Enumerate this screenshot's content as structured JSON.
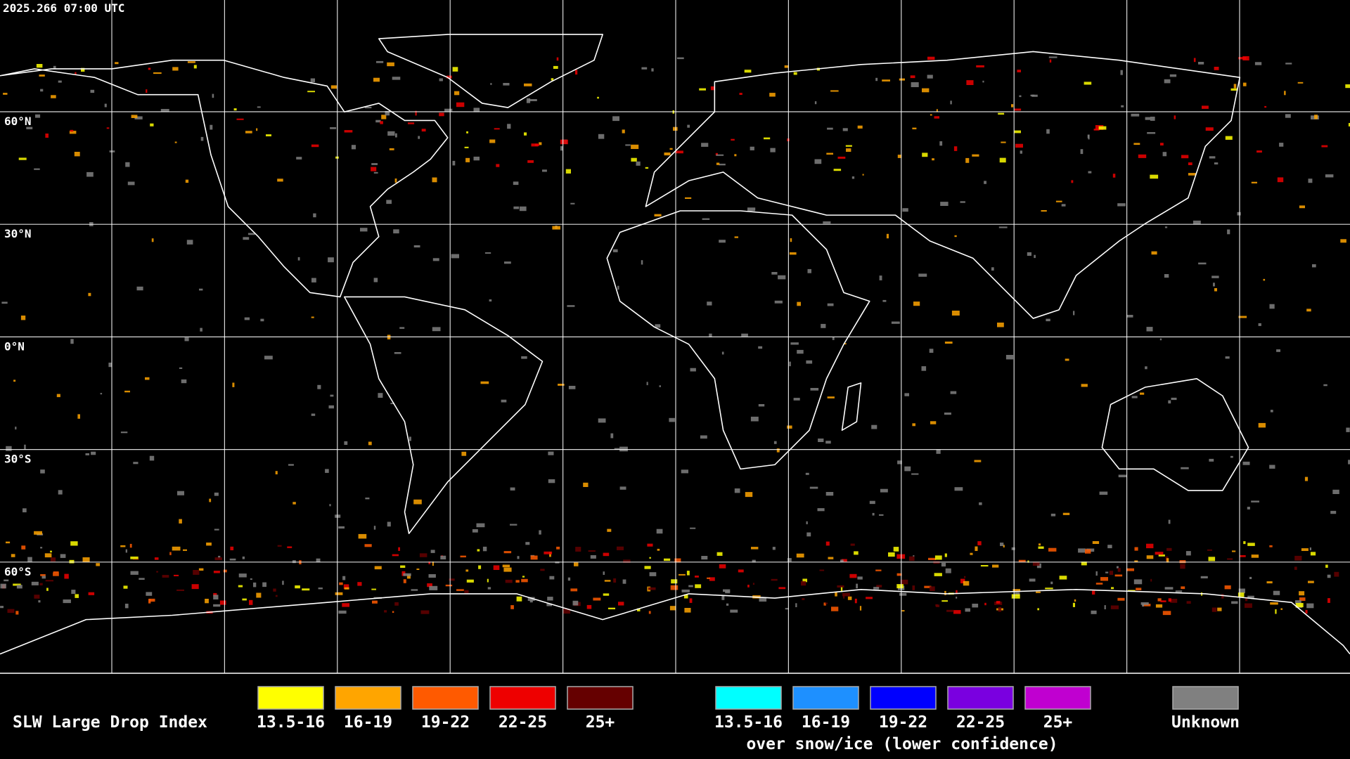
{
  "header": {
    "timestamp": "2025.266 07:00 UTC"
  },
  "grid": {
    "lat_labels": [
      "60°N",
      "30°N",
      "0°N",
      "30°S",
      "60°S"
    ]
  },
  "legend": {
    "title": "SLW Large Drop Index",
    "items": [
      {
        "label": "13.5-16",
        "color": "#ffff00"
      },
      {
        "label": "16-19",
        "color": "#ffa500"
      },
      {
        "label": "19-22",
        "color": "#ff5a00"
      },
      {
        "label": "22-25",
        "color": "#ee0000"
      },
      {
        "label": "25+",
        "color": "#650000"
      }
    ],
    "snow_items": [
      {
        "label": "13.5-16",
        "color": "#00ffff"
      },
      {
        "label": "16-19",
        "color": "#1e90ff"
      },
      {
        "label": "19-22",
        "color": "#0000ff"
      },
      {
        "label": "22-25",
        "color": "#7a00e0"
      },
      {
        "label": "25+",
        "color": "#c000d0"
      }
    ],
    "snow_note": "over snow/ice (lower confidence)",
    "unknown": {
      "label": "Unknown",
      "color": "#808080"
    }
  }
}
